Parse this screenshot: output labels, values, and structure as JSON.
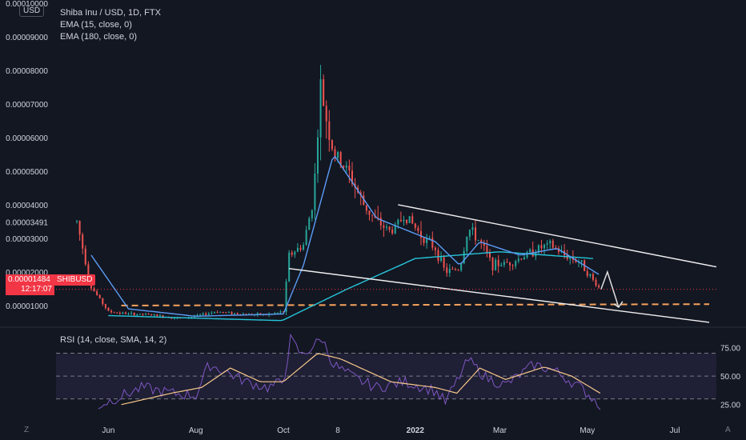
{
  "header": {
    "currency_badge": "USD",
    "symbol_title": "Shiba Inu / USD, 1D, FTX",
    "indicators": [
      "EMA (15, close, 0)",
      "EMA (180, close, 0)"
    ]
  },
  "price_label": {
    "value": "0.00001484",
    "countdown": "12:17:07",
    "symbol": "SHIBUSD"
  },
  "rsi_panel": {
    "label": "RSI (14, close, SMA, 14, 2)"
  },
  "corner_labels": {
    "left": "Z",
    "right": "A"
  },
  "colors": {
    "background": "#131722",
    "candle_up": "#26a69a",
    "candle_down": "#ef5350",
    "ema15": "#5b9cf6",
    "ema180": "#26c6da",
    "trendline": "#f0f0f0",
    "support_dashed": "#f7a35c",
    "rsi_line": "#7e57c2",
    "rsi_sma": "#f7c88a",
    "rsi_band": "#7e57c2",
    "price_badge": "#f23645"
  },
  "chart_data": [
    {
      "type": "candlestick",
      "symbol": "SHIBUSD",
      "y_tick_labels": [
        "0.00010000",
        "0.00009000",
        "0.00008000",
        "0.00007000",
        "0.00006000",
        "0.00005000",
        "0.00004000",
        "0.00003491",
        "0.00003000",
        "0.00002000",
        "0.00001000"
      ],
      "x_tick_labels": [
        "Jun",
        "Aug",
        "Oct",
        "8",
        "2022",
        "Mar",
        "May",
        "Jul"
      ],
      "x_tick_dates": [
        "2021-06-01",
        "2021-08-01",
        "2021-10-01",
        "2021-11-08",
        "2022-01-01",
        "2022-03-01",
        "2022-05-01",
        "2022-07-01"
      ],
      "ylim": [
        4.5e-06,
        0.0001
      ],
      "xlim": [
        "2021-04-21",
        "2022-07-30"
      ],
      "last_price": 1.484e-05,
      "marked_price": 3.491e-05,
      "key_points": [
        {
          "date": "2021-05-10",
          "price": 3.5e-05
        },
        {
          "date": "2021-05-20",
          "price": 1.55e-05
        },
        {
          "date": "2021-06-01",
          "price": 8.2e-06
        },
        {
          "date": "2021-06-15",
          "price": 7.5e-06
        },
        {
          "date": "2021-07-01",
          "price": 7.2e-06
        },
        {
          "date": "2021-07-20",
          "price": 6.2e-06
        },
        {
          "date": "2021-08-01",
          "price": 6.8e-06
        },
        {
          "date": "2021-08-15",
          "price": 8.2e-06
        },
        {
          "date": "2021-09-01",
          "price": 7.5e-06
        },
        {
          "date": "2021-09-20",
          "price": 7.2e-06
        },
        {
          "date": "2021-10-01",
          "price": 8.2e-06
        },
        {
          "date": "2021-10-05",
          "price": 2.5e-05
        },
        {
          "date": "2021-10-15",
          "price": 2.8e-05
        },
        {
          "date": "2021-10-22",
          "price": 4.2e-05
        },
        {
          "date": "2021-10-27",
          "price": 7.5e-05
        },
        {
          "date": "2021-10-29",
          "price": 7e-05
        },
        {
          "date": "2021-11-05",
          "price": 5.5e-05
        },
        {
          "date": "2021-11-15",
          "price": 5e-05
        },
        {
          "date": "2021-11-26",
          "price": 4e-05
        },
        {
          "date": "2021-12-05",
          "price": 3.5e-05
        },
        {
          "date": "2021-12-15",
          "price": 3.2e-05
        },
        {
          "date": "2021-12-25",
          "price": 3.7e-05
        },
        {
          "date": "2022-01-05",
          "price": 3.1e-05
        },
        {
          "date": "2022-01-15",
          "price": 2.7e-05
        },
        {
          "date": "2022-01-22",
          "price": 2e-05
        },
        {
          "date": "2022-02-01",
          "price": 2.1e-05
        },
        {
          "date": "2022-02-07",
          "price": 3.3e-05
        },
        {
          "date": "2022-02-15",
          "price": 2.9e-05
        },
        {
          "date": "2022-02-24",
          "price": 2.2e-05
        },
        {
          "date": "2022-03-10",
          "price": 2.3e-05
        },
        {
          "date": "2022-03-28",
          "price": 2.7e-05
        },
        {
          "date": "2022-04-05",
          "price": 2.8e-05
        },
        {
          "date": "2022-04-15",
          "price": 2.5e-05
        },
        {
          "date": "2022-04-26",
          "price": 2.3e-05
        },
        {
          "date": "2022-05-05",
          "price": 1.75e-05
        },
        {
          "date": "2022-05-10",
          "price": 1.484e-05
        }
      ],
      "ema15_key_points": [
        {
          "date": "2021-05-20",
          "price": 2.5e-05
        },
        {
          "date": "2021-06-15",
          "price": 9e-06
        },
        {
          "date": "2021-08-01",
          "price": 6.8e-06
        },
        {
          "date": "2021-10-01",
          "price": 7.5e-06
        },
        {
          "date": "2021-10-15",
          "price": 2.2e-05
        },
        {
          "date": "2021-11-05",
          "price": 5.5e-05
        },
        {
          "date": "2021-12-05",
          "price": 3.6e-05
        },
        {
          "date": "2022-01-15",
          "price": 2.9e-05
        },
        {
          "date": "2022-02-01",
          "price": 2.2e-05
        },
        {
          "date": "2022-02-15",
          "price": 2.9e-05
        },
        {
          "date": "2022-03-15",
          "price": 2.5e-05
        },
        {
          "date": "2022-04-10",
          "price": 2.7e-05
        },
        {
          "date": "2022-05-10",
          "price": 1.9e-05
        }
      ],
      "ema180_key_points": [
        {
          "date": "2021-06-01",
          "price": 7e-06
        },
        {
          "date": "2021-09-30",
          "price": 5.5e-06
        },
        {
          "date": "2021-11-15",
          "price": 1.5e-05
        },
        {
          "date": "2022-01-01",
          "price": 2.4e-05
        },
        {
          "date": "2022-03-01",
          "price": 2.6e-05
        },
        {
          "date": "2022-05-05",
          "price": 2.4e-05
        }
      ],
      "drawings": {
        "upper_trendline": [
          {
            "date": "2021-12-20",
            "price": 4e-05
          },
          {
            "date": "2022-07-30",
            "price": 2.15e-05
          }
        ],
        "lower_trendline": [
          {
            "date": "2021-10-05",
            "price": 2.1e-05
          },
          {
            "date": "2022-07-25",
            "price": 5e-06
          }
        ],
        "support_dashed": [
          {
            "date": "2021-06-10",
            "price": 1e-05
          },
          {
            "date": "2022-07-25",
            "price": 1.04e-05
          }
        ]
      }
    },
    {
      "type": "line",
      "name": "RSI (14, close, SMA, 14, 2)",
      "ylim": [
        15,
        90
      ],
      "y_tick_labels": [
        "75.00",
        "50.00",
        "25.00"
      ],
      "bands": {
        "upper": 70,
        "middle": 50,
        "lower": 30
      },
      "rsi_key_points": [
        {
          "date": "2021-05-25",
          "value": 24
        },
        {
          "date": "2021-06-05",
          "value": 30
        },
        {
          "date": "2021-06-25",
          "value": 40
        },
        {
          "date": "2021-07-15",
          "value": 35
        },
        {
          "date": "2021-08-01",
          "value": 33
        },
        {
          "date": "2021-08-10",
          "value": 60
        },
        {
          "date": "2021-08-20",
          "value": 55
        },
        {
          "date": "2021-09-05",
          "value": 45
        },
        {
          "date": "2021-09-20",
          "value": 40
        },
        {
          "date": "2021-10-01",
          "value": 45
        },
        {
          "date": "2021-10-06",
          "value": 82
        },
        {
          "date": "2021-10-14",
          "value": 68
        },
        {
          "date": "2021-10-28",
          "value": 83
        },
        {
          "date": "2021-11-05",
          "value": 60
        },
        {
          "date": "2021-11-20",
          "value": 48
        },
        {
          "date": "2021-12-05",
          "value": 40
        },
        {
          "date": "2021-12-25",
          "value": 45
        },
        {
          "date": "2022-01-15",
          "value": 37
        },
        {
          "date": "2022-01-22",
          "value": 27
        },
        {
          "date": "2022-02-07",
          "value": 64
        },
        {
          "date": "2022-02-20",
          "value": 48
        },
        {
          "date": "2022-03-05",
          "value": 42
        },
        {
          "date": "2022-03-25",
          "value": 60
        },
        {
          "date": "2022-04-08",
          "value": 55
        },
        {
          "date": "2022-04-26",
          "value": 40
        },
        {
          "date": "2022-05-10",
          "value": 25
        }
      ],
      "sma_key_points": [
        {
          "date": "2021-06-10",
          "value": 25
        },
        {
          "date": "2021-07-15",
          "value": 35
        },
        {
          "date": "2021-08-05",
          "value": 40
        },
        {
          "date": "2021-08-25",
          "value": 57
        },
        {
          "date": "2021-09-15",
          "value": 45
        },
        {
          "date": "2021-10-01",
          "value": 45
        },
        {
          "date": "2021-10-25",
          "value": 70
        },
        {
          "date": "2021-11-10",
          "value": 65
        },
        {
          "date": "2021-12-15",
          "value": 45
        },
        {
          "date": "2022-01-15",
          "value": 40
        },
        {
          "date": "2022-01-30",
          "value": 35
        },
        {
          "date": "2022-02-15",
          "value": 57
        },
        {
          "date": "2022-03-05",
          "value": 47
        },
        {
          "date": "2022-04-01",
          "value": 58
        },
        {
          "date": "2022-04-20",
          "value": 50
        },
        {
          "date": "2022-05-10",
          "value": 35
        }
      ]
    }
  ]
}
